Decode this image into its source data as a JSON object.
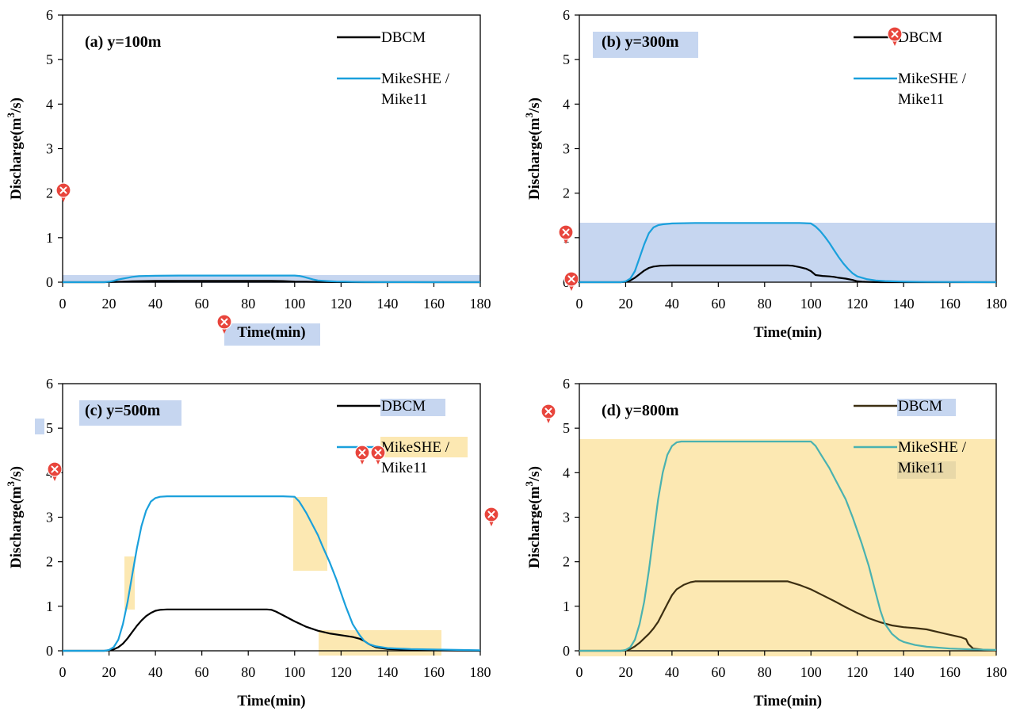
{
  "colors": {
    "dbcm": "#000000",
    "dbcm_panel_d": "#3d2f12",
    "mikeshe": "#1aa0dc",
    "mikeshe_panel_d": "#4ab2b0",
    "highlight_blue": "#c6d6f0",
    "highlight_yellow": "#fce8b2",
    "highlight_brown": "#e8d8a8",
    "marker": "#e8453c"
  },
  "annotation_icon": "x-marker-pin-icon",
  "chart_data": [
    {
      "type": "line",
      "panel_label": "(a) y=100m",
      "xlabel": "Time(min)",
      "ylabel_main": "Discharge(m",
      "ylabel_sup": "3",
      "ylabel_end": "/s)",
      "xlim": [
        0,
        180
      ],
      "ylim": [
        0,
        6
      ],
      "xticks": [
        0,
        20,
        40,
        60,
        80,
        100,
        120,
        140,
        160,
        180
      ],
      "yticks": [
        0,
        1,
        2,
        3,
        4,
        5,
        6
      ],
      "legend_position": "top-right",
      "series": [
        {
          "name": "DBCM",
          "x": [
            0,
            18,
            22,
            26,
            30,
            35,
            40,
            50,
            60,
            70,
            80,
            90,
            95,
            100,
            105,
            110,
            120,
            130,
            140,
            150,
            160,
            170,
            180
          ],
          "y": [
            0,
            0,
            0.005,
            0.012,
            0.02,
            0.025,
            0.028,
            0.03,
            0.03,
            0.03,
            0.03,
            0.03,
            0.025,
            0.015,
            0.01,
            0.005,
            0.002,
            0,
            0,
            0,
            0,
            0,
            0
          ]
        },
        {
          "name": "MikeSHE / Mike11",
          "x": [
            0,
            18,
            20,
            22,
            24,
            26,
            28,
            30,
            33,
            36,
            40,
            50,
            60,
            70,
            80,
            90,
            95,
            100,
            102,
            104,
            106,
            108,
            110,
            114,
            118,
            122,
            126,
            130,
            140,
            150,
            160,
            170,
            180
          ],
          "y": [
            0,
            0,
            0.01,
            0.03,
            0.06,
            0.08,
            0.1,
            0.12,
            0.135,
            0.14,
            0.145,
            0.15,
            0.15,
            0.15,
            0.15,
            0.15,
            0.15,
            0.15,
            0.14,
            0.12,
            0.09,
            0.06,
            0.04,
            0.025,
            0.015,
            0.01,
            0.006,
            0.004,
            0.002,
            0.001,
            0,
            0,
            0
          ]
        }
      ]
    },
    {
      "type": "line",
      "panel_label": "(b) y=300m",
      "xlabel": "Time(min)",
      "ylabel_main": "Discharge(m",
      "ylabel_sup": "3",
      "ylabel_end": "/s)",
      "xlim": [
        0,
        180
      ],
      "ylim": [
        0,
        6
      ],
      "xticks": [
        0,
        20,
        40,
        60,
        80,
        100,
        120,
        140,
        160,
        180
      ],
      "yticks": [
        0,
        1,
        2,
        3,
        4,
        5,
        6
      ],
      "legend_position": "top-right",
      "series": [
        {
          "name": "DBCM",
          "x": [
            0,
            18,
            20,
            22,
            24,
            26,
            28,
            30,
            32,
            35,
            40,
            50,
            60,
            70,
            80,
            90,
            92,
            95,
            98,
            100,
            102,
            105,
            108,
            110,
            112,
            115,
            118,
            120,
            122,
            125,
            130,
            140,
            150,
            160,
            170,
            180
          ],
          "y": [
            0,
            0,
            0.01,
            0.04,
            0.1,
            0.18,
            0.26,
            0.32,
            0.35,
            0.37,
            0.375,
            0.375,
            0.375,
            0.375,
            0.375,
            0.375,
            0.37,
            0.34,
            0.3,
            0.25,
            0.16,
            0.14,
            0.13,
            0.12,
            0.1,
            0.08,
            0.05,
            0.02,
            0.01,
            0.005,
            0,
            0,
            0,
            0,
            0,
            0
          ]
        },
        {
          "name": "MikeSHE / Mike11",
          "x": [
            0,
            18,
            20,
            22,
            24,
            26,
            28,
            30,
            32,
            34,
            36,
            40,
            50,
            60,
            70,
            80,
            90,
            95,
            100,
            102,
            104,
            106,
            108,
            110,
            112,
            114,
            116,
            118,
            120,
            124,
            128,
            132,
            140,
            150,
            160,
            170,
            180
          ],
          "y": [
            0,
            0,
            0.02,
            0.08,
            0.25,
            0.55,
            0.85,
            1.1,
            1.23,
            1.28,
            1.3,
            1.32,
            1.33,
            1.33,
            1.33,
            1.33,
            1.33,
            1.33,
            1.32,
            1.25,
            1.15,
            1.02,
            0.88,
            0.72,
            0.56,
            0.42,
            0.3,
            0.2,
            0.13,
            0.07,
            0.04,
            0.025,
            0.012,
            0.006,
            0.003,
            0.001,
            0
          ]
        }
      ]
    },
    {
      "type": "line",
      "panel_label": "(c) y=500m",
      "xlabel": "Time(min)",
      "ylabel_main": "Discharge(m",
      "ylabel_sup": "3",
      "ylabel_end": "/s)",
      "xlim": [
        0,
        180
      ],
      "ylim": [
        0,
        6
      ],
      "xticks": [
        0,
        20,
        40,
        60,
        80,
        100,
        120,
        140,
        160,
        180
      ],
      "yticks": [
        0,
        1,
        2,
        3,
        4,
        5,
        6
      ],
      "legend_position": "top-right",
      "series": [
        {
          "name": "DBCM",
          "x": [
            0,
            18,
            20,
            22,
            24,
            26,
            28,
            30,
            32,
            34,
            36,
            38,
            40,
            42,
            45,
            50,
            60,
            70,
            80,
            88,
            90,
            92,
            95,
            100,
            105,
            110,
            115,
            120,
            125,
            128,
            130,
            132,
            135,
            140,
            150,
            160,
            170,
            180
          ],
          "y": [
            0,
            0,
            0.01,
            0.03,
            0.08,
            0.16,
            0.28,
            0.42,
            0.56,
            0.68,
            0.78,
            0.85,
            0.9,
            0.92,
            0.93,
            0.93,
            0.93,
            0.93,
            0.93,
            0.93,
            0.92,
            0.88,
            0.8,
            0.66,
            0.54,
            0.45,
            0.39,
            0.35,
            0.31,
            0.27,
            0.22,
            0.15,
            0.08,
            0.04,
            0.02,
            0.01,
            0.005,
            0
          ]
        },
        {
          "name": "MikeSHE / Mike11",
          "x": [
            0,
            18,
            20,
            22,
            24,
            26,
            28,
            30,
            32,
            34,
            36,
            38,
            40,
            42,
            45,
            50,
            60,
            70,
            80,
            90,
            95,
            100,
            102,
            105,
            108,
            110,
            112,
            115,
            118,
            120,
            122,
            125,
            128,
            130,
            132,
            135,
            140,
            150,
            160,
            170,
            180
          ],
          "y": [
            0,
            0,
            0.02,
            0.08,
            0.25,
            0.6,
            1.1,
            1.7,
            2.3,
            2.8,
            3.15,
            3.35,
            3.43,
            3.46,
            3.47,
            3.47,
            3.47,
            3.47,
            3.47,
            3.47,
            3.47,
            3.46,
            3.35,
            3.1,
            2.8,
            2.6,
            2.35,
            2.0,
            1.6,
            1.3,
            1.0,
            0.6,
            0.35,
            0.22,
            0.15,
            0.1,
            0.06,
            0.04,
            0.03,
            0.02,
            0.01
          ]
        }
      ]
    },
    {
      "type": "line",
      "panel_label": "(d) y=800m",
      "xlabel": "Time(min)",
      "ylabel_main": "Discharge(m",
      "ylabel_sup": "3",
      "ylabel_end": "/s)",
      "xlim": [
        0,
        180
      ],
      "ylim": [
        0,
        6
      ],
      "xticks": [
        0,
        20,
        40,
        60,
        80,
        100,
        120,
        140,
        160,
        180
      ],
      "yticks": [
        0,
        1,
        2,
        3,
        4,
        5,
        6
      ],
      "legend_position": "top-right",
      "series": [
        {
          "name": "DBCM",
          "x": [
            0,
            18,
            20,
            22,
            24,
            26,
            28,
            30,
            32,
            34,
            36,
            38,
            40,
            42,
            45,
            48,
            50,
            60,
            70,
            80,
            90,
            95,
            100,
            105,
            110,
            115,
            120,
            125,
            130,
            135,
            140,
            145,
            150,
            155,
            160,
            165,
            167,
            168,
            170,
            175,
            180
          ],
          "y": [
            0,
            0,
            0.01,
            0.04,
            0.1,
            0.18,
            0.28,
            0.38,
            0.5,
            0.65,
            0.85,
            1.05,
            1.25,
            1.38,
            1.48,
            1.54,
            1.56,
            1.56,
            1.56,
            1.56,
            1.56,
            1.48,
            1.38,
            1.25,
            1.12,
            0.98,
            0.85,
            0.73,
            0.64,
            0.57,
            0.53,
            0.51,
            0.48,
            0.42,
            0.36,
            0.3,
            0.26,
            0.15,
            0.05,
            0.02,
            0.01
          ]
        },
        {
          "name": "MikeSHE / Mike11",
          "x": [
            0,
            18,
            20,
            22,
            24,
            26,
            28,
            30,
            32,
            34,
            36,
            38,
            40,
            42,
            44,
            46,
            50,
            60,
            70,
            80,
            90,
            95,
            100,
            102,
            105,
            108,
            110,
            112,
            115,
            118,
            120,
            122,
            125,
            128,
            130,
            132,
            135,
            138,
            140,
            145,
            150,
            160,
            170,
            180
          ],
          "y": [
            0,
            0,
            0.02,
            0.08,
            0.25,
            0.6,
            1.1,
            1.8,
            2.6,
            3.4,
            4.0,
            4.4,
            4.6,
            4.68,
            4.7,
            4.7,
            4.7,
            4.7,
            4.7,
            4.7,
            4.7,
            4.7,
            4.7,
            4.6,
            4.35,
            4.1,
            3.9,
            3.7,
            3.4,
            3.0,
            2.7,
            2.4,
            1.9,
            1.3,
            0.9,
            0.6,
            0.38,
            0.25,
            0.2,
            0.13,
            0.09,
            0.05,
            0.03,
            0.02
          ]
        }
      ]
    }
  ]
}
